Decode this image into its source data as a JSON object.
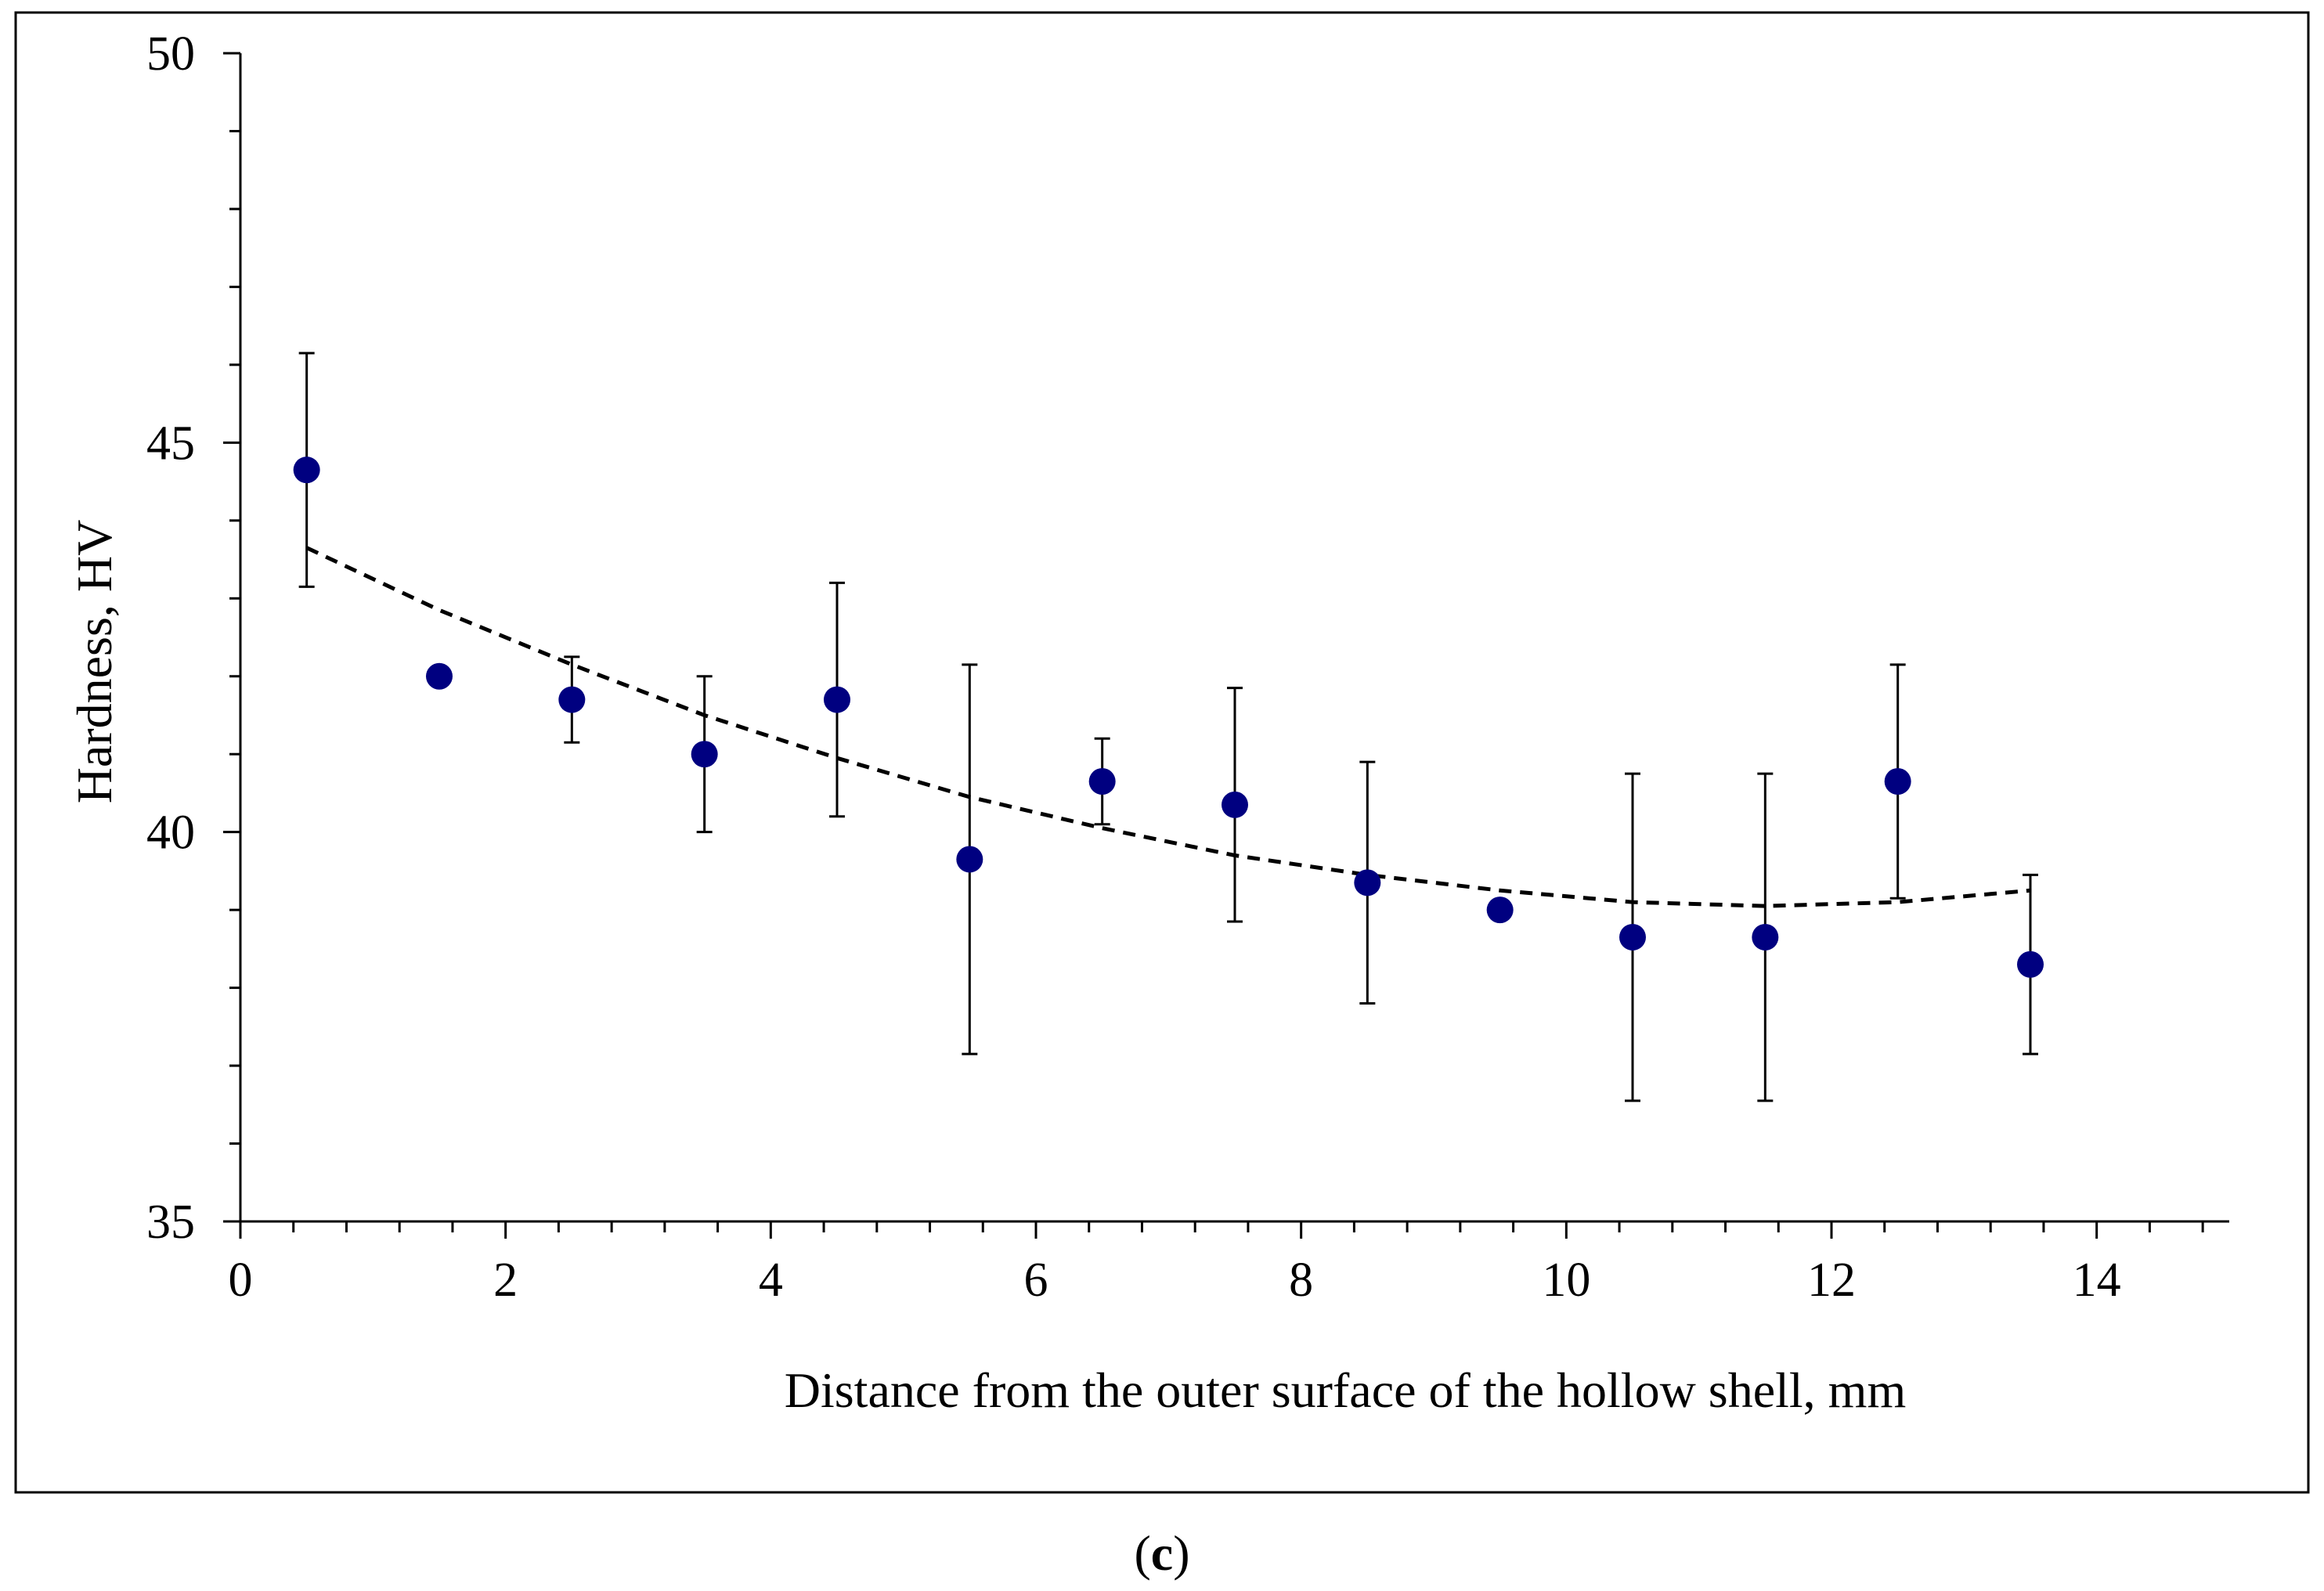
{
  "chart_data": {
    "type": "scatter",
    "title": "",
    "xlabel": "Distance from the outer surface of the hollow shell, mm",
    "ylabel": "Hardness, HV",
    "xlim": [
      0,
      15
    ],
    "ylim": [
      35,
      50
    ],
    "x_ticks": [
      0,
      2,
      4,
      6,
      8,
      10,
      12,
      14
    ],
    "x_tick_labels": [
      "0",
      "2",
      "4",
      "6",
      "8",
      "10",
      "12",
      "14"
    ],
    "y_ticks": [
      35,
      40,
      45,
      50
    ],
    "y_tick_labels": [
      "35",
      "40",
      "45",
      "50"
    ],
    "grid": false,
    "legend": "none",
    "caption_open": "(",
    "caption_bold": "c",
    "caption_close": ")",
    "colors": {
      "marker": "#000080",
      "error_bar": "#000000",
      "trend": "#000000",
      "axes": "#000000"
    },
    "series": [
      {
        "name": "Hardness",
        "x": [
          0.5,
          1.5,
          2.5,
          3.5,
          4.5,
          5.5,
          6.5,
          7.5,
          8.5,
          9.5,
          10.5,
          11.5,
          12.5,
          13.5
        ],
        "y": [
          44.65,
          42.0,
          41.7,
          41.0,
          41.7,
          39.65,
          40.65,
          40.35,
          39.35,
          39.0,
          38.65,
          38.65,
          40.65,
          38.3
        ],
        "error": [
          1.5,
          0.0,
          0.55,
          1.0,
          1.5,
          2.5,
          0.55,
          1.5,
          1.55,
          0.0,
          2.1,
          2.1,
          1.5,
          1.15
        ]
      }
    ],
    "trendline": {
      "type": "polynomial",
      "style": "dashed",
      "x": [
        0.5,
        1.5,
        2.5,
        3.5,
        4.5,
        5.5,
        6.5,
        7.5,
        8.5,
        9.5,
        10.5,
        11.5,
        12.5,
        13.5
      ],
      "y": [
        43.65,
        42.85,
        42.15,
        41.5,
        40.95,
        40.45,
        40.05,
        39.7,
        39.45,
        39.25,
        39.1,
        39.05,
        39.1,
        39.25
      ]
    }
  }
}
